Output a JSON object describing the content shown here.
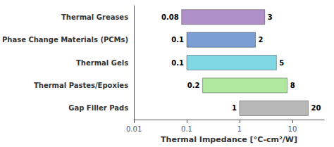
{
  "chart_data": {
    "type": "bar",
    "orientation": "horizontal",
    "log": "x",
    "xlabel": "Thermal Impedance [°C-cm²/W]",
    "categories": [
      "Thermal Greases",
      "Phase Change Materials (PCMs)",
      "Thermal Gels",
      "Thermal Pastes/Epoxies",
      "Gap Filler Pads"
    ],
    "values": [
      [
        0.08,
        3
      ],
      [
        0.1,
        2
      ],
      [
        0.1,
        5
      ],
      [
        0.2,
        8
      ],
      [
        1,
        20
      ]
    ],
    "colors": [
      "#b090c8",
      "#7b9fd4",
      "#80d8e4",
      "#b0e8a0",
      "#b8b8b8"
    ],
    "xlim": [
      0.01,
      40
    ],
    "xticks": [
      0.01,
      0.1,
      1,
      10
    ],
    "grid": false,
    "data_labels": true
  }
}
